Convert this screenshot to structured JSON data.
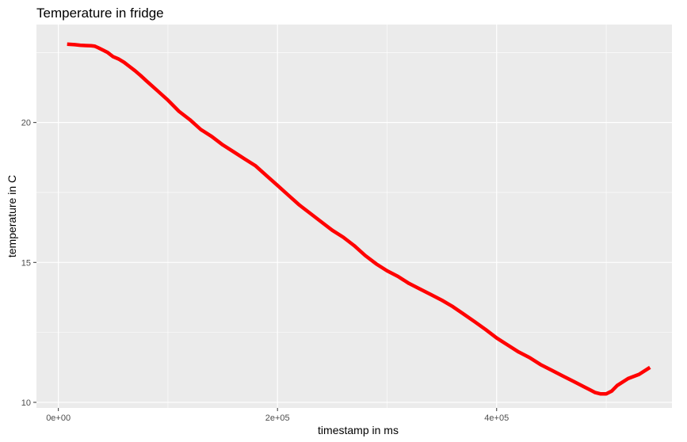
{
  "chart_data": {
    "type": "line",
    "title": "Temperature in fridge",
    "xlabel": "timestamp in ms",
    "ylabel": "temperature in C",
    "xlim": [
      -20000,
      560000
    ],
    "ylim": [
      9.8,
      23.5
    ],
    "x_ticks": [
      {
        "value": 0,
        "label": "0e+00"
      },
      {
        "value": 200000,
        "label": "2e+05"
      },
      {
        "value": 400000,
        "label": "4e+05"
      }
    ],
    "x_minor": [
      100000,
      300000,
      500000
    ],
    "y_ticks": [
      {
        "value": 10,
        "label": "10"
      },
      {
        "value": 15,
        "label": "15"
      },
      {
        "value": 20,
        "label": "20"
      }
    ],
    "y_minor": [
      12.5,
      17.5,
      22.5
    ],
    "grid": true,
    "series": [
      {
        "color": "#ff0000",
        "x": [
          8000,
          15000,
          20000,
          25000,
          30000,
          33000,
          36000,
          40000,
          45000,
          50000,
          55000,
          60000,
          65000,
          70000,
          75000,
          80000,
          90000,
          100000,
          110000,
          120000,
          130000,
          140000,
          150000,
          160000,
          170000,
          180000,
          190000,
          200000,
          210000,
          220000,
          230000,
          240000,
          250000,
          260000,
          270000,
          280000,
          290000,
          300000,
          310000,
          320000,
          330000,
          340000,
          350000,
          360000,
          370000,
          380000,
          390000,
          400000,
          410000,
          420000,
          430000,
          440000,
          450000,
          460000,
          470000,
          480000,
          485000,
          490000,
          495000,
          500000,
          505000,
          510000,
          520000,
          530000,
          540000
        ],
        "values": [
          22.8,
          22.78,
          22.76,
          22.75,
          22.74,
          22.73,
          22.68,
          22.6,
          22.5,
          22.35,
          22.27,
          22.15,
          22.0,
          21.85,
          21.68,
          21.5,
          21.15,
          20.8,
          20.4,
          20.1,
          19.75,
          19.5,
          19.2,
          18.95,
          18.7,
          18.45,
          18.1,
          17.75,
          17.4,
          17.05,
          16.75,
          16.45,
          16.15,
          15.9,
          15.6,
          15.25,
          14.95,
          14.7,
          14.5,
          14.25,
          14.05,
          13.85,
          13.65,
          13.42,
          13.15,
          12.88,
          12.6,
          12.3,
          12.05,
          11.8,
          11.6,
          11.35,
          11.15,
          10.95,
          10.75,
          10.55,
          10.45,
          10.35,
          10.3,
          10.3,
          10.4,
          10.6,
          10.85,
          11.0,
          11.25
        ]
      }
    ]
  }
}
